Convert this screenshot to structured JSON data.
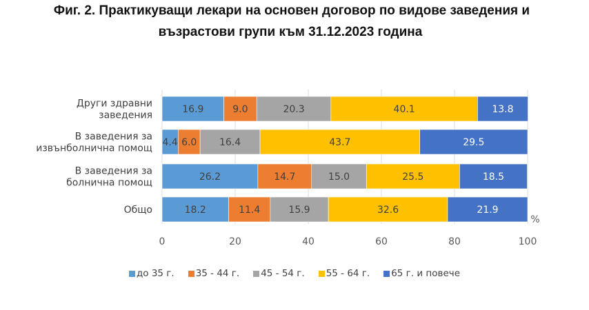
{
  "title_line1": "Фиг. 2. Практикуващи лекари на основен договор по видове заведения и",
  "title_line2": "възрастови групи към 31.12.2023 година",
  "chart_data": {
    "type": "bar",
    "orientation": "horizontal",
    "stacked": true,
    "title": "Фиг. 2. Практикуващи лекари на основен договор по видове заведения и възрастови групи към 31.12.2023 година",
    "categories": [
      [
        "Други здравни",
        "заведения"
      ],
      [
        "В заведения за",
        "извънболнична помощ"
      ],
      [
        "В заведения за",
        "болнична помощ"
      ],
      [
        "Общо"
      ]
    ],
    "series": [
      {
        "name": "до 35 г.",
        "color": "#5B9BD5",
        "label_color": "#404040",
        "values": [
          16.9,
          4.4,
          26.2,
          18.2
        ]
      },
      {
        "name": "35 - 44 г.",
        "color": "#ED7D31",
        "label_color": "#404040",
        "values": [
          9.0,
          6.0,
          14.7,
          11.4
        ]
      },
      {
        "name": "45 - 54 г.",
        "color": "#A5A5A5",
        "label_color": "#404040",
        "values": [
          20.3,
          16.4,
          15.0,
          15.9
        ]
      },
      {
        "name": "55 - 64 г.",
        "color": "#FFC000",
        "label_color": "#404040",
        "values": [
          40.1,
          43.7,
          25.5,
          32.6
        ]
      },
      {
        "name": "65 г. и повече",
        "color": "#4472C4",
        "label_color": "#ffffff",
        "values": [
          13.8,
          29.5,
          18.5,
          21.9
        ]
      }
    ],
    "xlim": [
      0,
      100
    ],
    "xticks": [
      0,
      20,
      40,
      60,
      80,
      100
    ],
    "xlabel": "%",
    "ylabel": "",
    "grid": true,
    "legend_position": "bottom"
  }
}
